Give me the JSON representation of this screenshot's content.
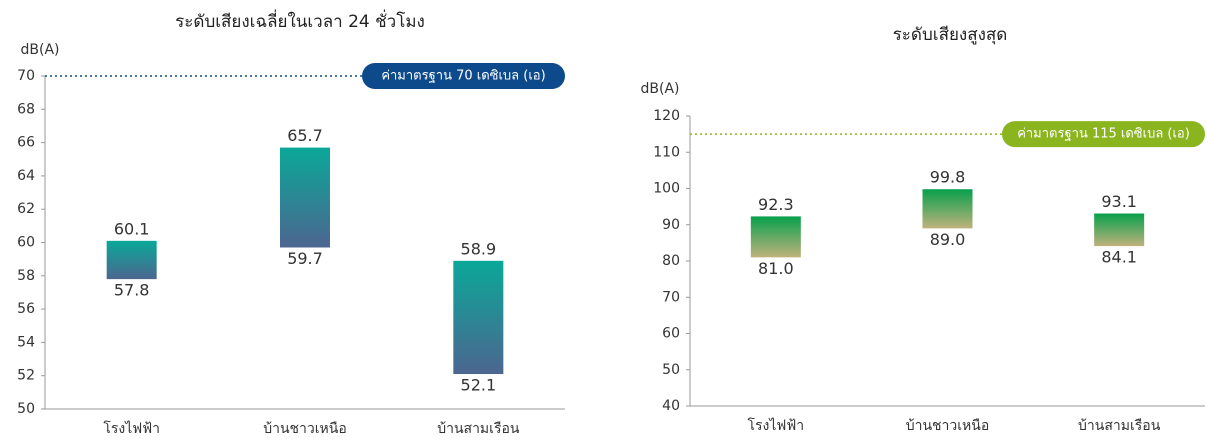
{
  "chart_data": [
    {
      "type": "floating_bar",
      "title": "ระดับเสียงเฉลี่ยในเวลา 24 ชั่วโมง",
      "y_label": "dB(A)",
      "categories": [
        "โรงไฟฟ้า",
        "บ้านชาวเหนือ",
        "บ้านสามเรือน"
      ],
      "low": [
        57.8,
        59.7,
        52.1
      ],
      "high": [
        60.1,
        65.7,
        58.9
      ],
      "ylim": [
        50,
        70
      ],
      "yticks": [
        50,
        52,
        54,
        56,
        58,
        60,
        62,
        64,
        66,
        68,
        70
      ],
      "reference_line": {
        "value": 70,
        "label": "ค่ามาตรฐาน 70 เดซิเบล (เอ)",
        "color": "#0d4a8c"
      },
      "color_top": "#0aa898",
      "color_bottom": "#4c6690"
    },
    {
      "type": "floating_bar",
      "title": "ระดับเสียงสูงสุด",
      "y_label": "dB(A)",
      "categories": [
        "โรงไฟฟ้า",
        "บ้านชาวเหนือ",
        "บ้านสามเรือน"
      ],
      "low": [
        81.0,
        89.0,
        84.1
      ],
      "low_labels": [
        "81.0",
        "89.0",
        "84.1"
      ],
      "high": [
        92.3,
        99.8,
        93.1
      ],
      "ylim": [
        40,
        120
      ],
      "yticks": [
        40,
        50,
        60,
        70,
        80,
        90,
        100,
        110,
        120
      ],
      "reference_line": {
        "value": 115,
        "label": "ค่ามาตรฐาน 115 เดซิเบล (เอ)",
        "color": "#8ab51e"
      },
      "color_top": "#07a04c",
      "color_bottom": "#bfb27c"
    }
  ]
}
